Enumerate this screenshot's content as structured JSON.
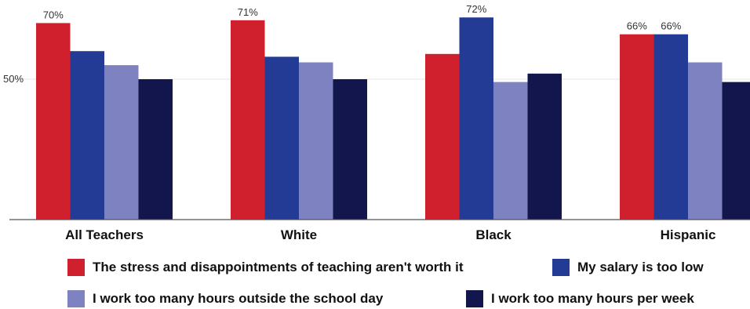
{
  "chart_data": {
    "type": "bar",
    "categories": [
      "All Teachers",
      "White",
      "Black",
      "Hispanic"
    ],
    "series": [
      {
        "name": "The stress and disappointments of teaching aren't worth it",
        "color": "#d0202e",
        "values": [
          70,
          71,
          59,
          66
        ]
      },
      {
        "name": "My salary is too low",
        "color": "#233b94",
        "values": [
          60,
          58,
          72,
          66
        ]
      },
      {
        "name": "I work too many hours outside the school day",
        "color": "#7e82c1",
        "values": [
          55,
          56,
          49,
          56
        ]
      },
      {
        "name": "I work too many hours per week",
        "color": "#13164d",
        "values": [
          50,
          50,
          52,
          49
        ]
      }
    ],
    "data_labels": [
      {
        "series": 0,
        "category": 0,
        "text": "70%"
      },
      {
        "series": 0,
        "category": 1,
        "text": "71%"
      },
      {
        "series": 1,
        "category": 2,
        "text": "72%"
      },
      {
        "series": 0,
        "category": 3,
        "text": "66%"
      },
      {
        "series": 1,
        "category": 3,
        "text": "66%"
      }
    ],
    "yticks": [
      {
        "value": 50,
        "label": "50%"
      }
    ],
    "ylim": [
      0,
      72
    ],
    "grid": true,
    "legend_position": "bottom",
    "title": "",
    "xlabel": "",
    "ylabel": ""
  }
}
